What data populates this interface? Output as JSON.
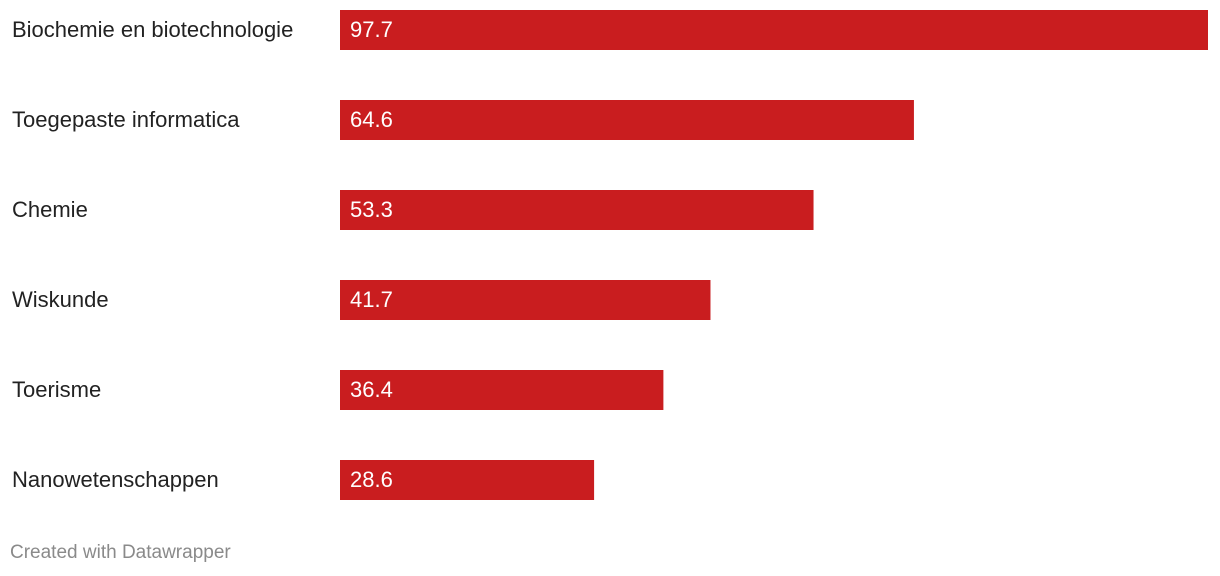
{
  "chart_data": {
    "type": "bar",
    "orientation": "horizontal",
    "categories": [
      "Biochemie en biotechnologie",
      "Toegepaste informatica",
      "Chemie",
      "Wiskunde",
      "Toerisme",
      "Nanowetenschappen"
    ],
    "values": [
      97.7,
      64.6,
      53.3,
      41.7,
      36.4,
      28.6
    ],
    "color": "#c91d1f",
    "credit": "Created with Datawrapper"
  }
}
